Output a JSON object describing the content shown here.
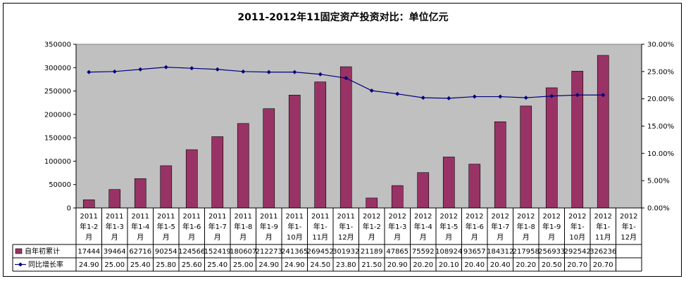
{
  "chart_data": {
    "type": "bar",
    "title": "2011-2012年11固定资产投资对比：单位亿元",
    "categories": [
      [
        "2011",
        "年1-2",
        "月"
      ],
      [
        "2011",
        "年1-3",
        "月"
      ],
      [
        "2011",
        "年1-4",
        "月"
      ],
      [
        "2011",
        "年1-5",
        "月"
      ],
      [
        "2011",
        "年1-6",
        "月"
      ],
      [
        "2011",
        "年1-7",
        "月"
      ],
      [
        "2011",
        "年1-8",
        "月"
      ],
      [
        "2011",
        "年1-9",
        "月"
      ],
      [
        "2011",
        "年1-",
        "10月"
      ],
      [
        "2011",
        "年1-",
        "11月"
      ],
      [
        "2011",
        "年1-",
        "12月"
      ],
      [
        "2012",
        "年1-2",
        "月"
      ],
      [
        "2012",
        "年1-3",
        "月"
      ],
      [
        "2012",
        "年1-4",
        "月"
      ],
      [
        "2012",
        "年1-5",
        "月"
      ],
      [
        "2012",
        "年1-6",
        "月"
      ],
      [
        "2012",
        "年1-7",
        "月"
      ],
      [
        "2012",
        "年1-8",
        "月"
      ],
      [
        "2012",
        "年1-9",
        "月"
      ],
      [
        "2012",
        "年1-",
        "10月"
      ],
      [
        "2012",
        "年1-",
        "11月"
      ],
      [
        "2012",
        "年1-",
        "12月"
      ]
    ],
    "series": [
      {
        "name": "自年初累计",
        "type": "bar",
        "axis": "left",
        "color": "#993366",
        "values": [
          17444,
          39464,
          62716,
          90254,
          124566,
          152419,
          180607,
          212273,
          241365,
          269452,
          301932,
          21189,
          47865,
          75592,
          108924,
          93657,
          184312,
          217958,
          256933,
          292542,
          326236,
          null
        ]
      },
      {
        "name": "同比增长率",
        "type": "line",
        "axis": "right",
        "color": "#000080",
        "values": [
          24.9,
          25.0,
          25.4,
          25.8,
          25.6,
          25.4,
          25.0,
          24.9,
          24.9,
          24.5,
          23.8,
          21.5,
          20.9,
          20.2,
          20.1,
          20.4,
          20.4,
          20.2,
          20.5,
          20.7,
          20.7,
          null
        ],
        "table_values": [
          "24.90",
          "25.00",
          "25.40",
          "25.80",
          "25.60",
          "25.40",
          "25.00",
          "24.90",
          "24.90",
          "24.50",
          "23.80",
          "21.50",
          "20.90",
          "20.20",
          "20.10",
          "20.40",
          "20.40",
          "20.20",
          "20.50",
          "20.70",
          "20.70",
          ""
        ]
      }
    ],
    "ylim_left": [
      0,
      350000
    ],
    "yticks_left": [
      "0",
      "50000",
      "100000",
      "150000",
      "200000",
      "250000",
      "300000",
      "350000"
    ],
    "ylim_right": [
      0,
      30
    ],
    "yticks_right": [
      "0.00%",
      "5.00%",
      "10.00%",
      "15.00%",
      "20.00%",
      "25.00%",
      "30.00%"
    ],
    "plot_background": "#c0c0c0",
    "data_table": true,
    "grid": false
  }
}
